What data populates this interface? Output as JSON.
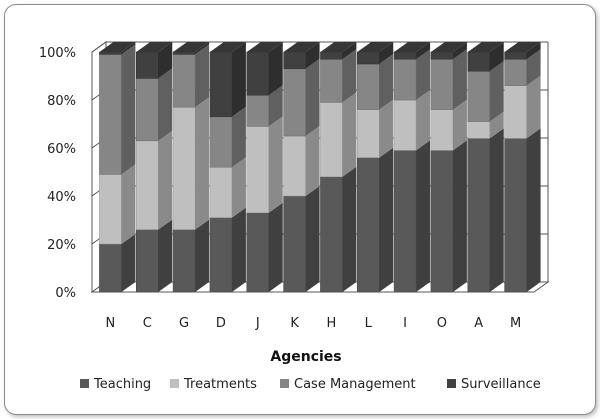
{
  "chart_data": {
    "type": "bar",
    "stacked": true,
    "percent_stacked": true,
    "three_d": true,
    "title": "",
    "xlabel": "Agencies",
    "ylabel": "",
    "ylim": [
      0,
      100
    ],
    "y_ticks": [
      "0%",
      "20%",
      "40%",
      "60%",
      "80%",
      "100%"
    ],
    "grid": true,
    "legend_position": "bottom",
    "categories": [
      "N",
      "C",
      "G",
      "D",
      "J",
      "K",
      "H",
      "L",
      "I",
      "O",
      "A",
      "M"
    ],
    "series": [
      {
        "name": "Teaching",
        "color": "#595959",
        "values": [
          20,
          26,
          26,
          31,
          33,
          40,
          48,
          56,
          59,
          59,
          64,
          64
        ]
      },
      {
        "name": "Treatments",
        "color": "#bfbfbf",
        "values": [
          29,
          37,
          51,
          21,
          36,
          25,
          31,
          20,
          21,
          17,
          7,
          22
        ]
      },
      {
        "name": "Case Management",
        "color": "#868686",
        "values": [
          50,
          26,
          22,
          21,
          13,
          28,
          18,
          19,
          17,
          21,
          21,
          11
        ]
      },
      {
        "name": "Surveillance",
        "color": "#404040",
        "values": [
          1,
          11,
          1,
          27,
          18,
          7,
          3,
          5,
          3,
          3,
          8,
          3
        ]
      }
    ]
  }
}
